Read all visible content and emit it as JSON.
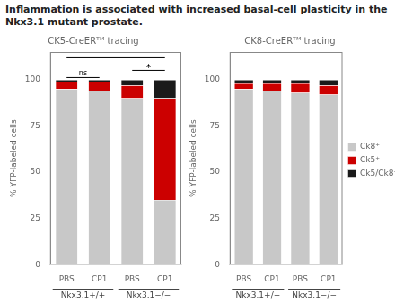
{
  "title": "Inflammation is associated with increased basal-cell plasticity in the Nkx3.1 mutant prostate.",
  "chart_data": [
    {
      "type": "bar",
      "stacked": true,
      "grid": false,
      "title": "CK5-CreERᵀᴹ tracing",
      "ylabel": "% YFP-labeled cells",
      "categories": [
        "PBS",
        "CP1",
        "PBS",
        "CP1"
      ],
      "groups": [
        "Nkx3.1+/+",
        "Nkx3.1−/−"
      ],
      "series": [
        {
          "name": "Ck8⁺",
          "color": "#c8c8c8",
          "values": [
            95,
            94,
            90,
            35
          ]
        },
        {
          "name": "Ck5⁺",
          "color": "#cc0000",
          "values": [
            4,
            5,
            7,
            55
          ]
        },
        {
          "name": "Ck5/Ck8⁺",
          "color": "#1a1a1a",
          "values": [
            1,
            1,
            3,
            10
          ]
        }
      ],
      "ylim": [
        0,
        115
      ],
      "yticks": [
        0,
        25,
        50,
        75,
        100
      ],
      "annotations": [
        "ns",
        "*"
      ]
    },
    {
      "type": "bar",
      "stacked": true,
      "grid": false,
      "title": "CK8-CreERᵀᴹ tracing",
      "ylabel": "% YFP-labeled cells",
      "categories": [
        "PBS",
        "CP1",
        "PBS",
        "CP1"
      ],
      "groups": [
        "Nkx3.1+/+",
        "Nkx3.1−/−"
      ],
      "series": [
        {
          "name": "Ck8⁺",
          "color": "#c8c8c8",
          "values": [
            95,
            94,
            93,
            92
          ]
        },
        {
          "name": "Ck5⁺",
          "color": "#cc0000",
          "values": [
            3,
            4,
            5,
            5
          ]
        },
        {
          "name": "Ck5/Ck8⁺",
          "color": "#1a1a1a",
          "values": [
            2,
            2,
            2,
            3
          ]
        }
      ],
      "ylim": [
        0,
        115
      ],
      "yticks": [
        0,
        25,
        50,
        75,
        100
      ],
      "legend": "right"
    }
  ]
}
